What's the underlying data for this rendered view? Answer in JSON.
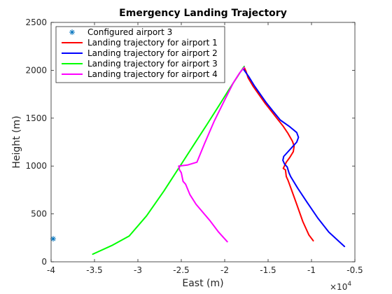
{
  "chart_data": {
    "type": "line",
    "title": "Emergency Landing Trajectory",
    "xlabel": "East (m)",
    "ylabel": "Height (m)",
    "x_exponent_label": "×10",
    "x_exponent_power": "4",
    "xlim": [
      -40000,
      -5000
    ],
    "ylim": [
      0,
      2500
    ],
    "x_ticks": [
      -40000,
      -35000,
      -30000,
      -25000,
      -20000,
      -15000,
      -10000,
      -5000
    ],
    "x_tick_labels": [
      "-4",
      "-3.5",
      "-3",
      "-2.5",
      "-2",
      "-1.5",
      "-1",
      "-0.5"
    ],
    "y_ticks": [
      0,
      500,
      1000,
      1500,
      2000,
      2500
    ],
    "y_tick_labels": [
      "0",
      "500",
      "1000",
      "1500",
      "2000",
      "2500"
    ],
    "grid": false,
    "legend_position": "top-left",
    "series": [
      {
        "name": "Configured airport 3",
        "kind": "marker",
        "marker": "asterisk",
        "color": "#0072BD",
        "points": [
          [
            -40000,
            240
          ]
        ]
      },
      {
        "name": "Landing trajectory for airport 1",
        "kind": "line",
        "color": "#FF0000",
        "points": [
          [
            -17750,
            2030
          ],
          [
            -17550,
            1990
          ],
          [
            -17300,
            1920
          ],
          [
            -16700,
            1830
          ],
          [
            -16000,
            1740
          ],
          [
            -15300,
            1650
          ],
          [
            -14600,
            1570
          ],
          [
            -14000,
            1500
          ],
          [
            -13300,
            1420
          ],
          [
            -12700,
            1340
          ],
          [
            -12200,
            1260
          ],
          [
            -12000,
            1210
          ],
          [
            -12100,
            1150
          ],
          [
            -12500,
            1090
          ],
          [
            -12900,
            1040
          ],
          [
            -13100,
            1005
          ],
          [
            -13250,
            975
          ],
          [
            -13000,
            960
          ],
          [
            -12900,
            890
          ],
          [
            -12700,
            850
          ],
          [
            -12300,
            750
          ],
          [
            -11700,
            600
          ],
          [
            -11000,
            420
          ],
          [
            -10300,
            280
          ],
          [
            -9800,
            220
          ]
        ]
      },
      {
        "name": "Landing trajectory for airport 2",
        "kind": "line",
        "color": "#0000FF",
        "points": [
          [
            -17900,
            2020
          ],
          [
            -17600,
            1980
          ],
          [
            -17200,
            1930
          ],
          [
            -16600,
            1840
          ],
          [
            -15900,
            1750
          ],
          [
            -15200,
            1660
          ],
          [
            -14400,
            1570
          ],
          [
            -13600,
            1480
          ],
          [
            -12500,
            1410
          ],
          [
            -11700,
            1350
          ],
          [
            -11500,
            1300
          ],
          [
            -11700,
            1250
          ],
          [
            -12200,
            1200
          ],
          [
            -12800,
            1140
          ],
          [
            -13200,
            1100
          ],
          [
            -13300,
            1060
          ],
          [
            -13100,
            1020
          ],
          [
            -12800,
            990
          ],
          [
            -12600,
            930
          ],
          [
            -12400,
            890
          ],
          [
            -11600,
            770
          ],
          [
            -10500,
            620
          ],
          [
            -9300,
            460
          ],
          [
            -8000,
            310
          ],
          [
            -6200,
            160
          ]
        ]
      },
      {
        "name": "Landing trajectory for airport 3",
        "kind": "line",
        "color": "#00FF00",
        "points": [
          [
            -17750,
            2040
          ],
          [
            -18200,
            1980
          ],
          [
            -18700,
            1910
          ],
          [
            -19500,
            1800
          ],
          [
            -20600,
            1640
          ],
          [
            -22000,
            1440
          ],
          [
            -23500,
            1230
          ],
          [
            -25000,
            1020
          ],
          [
            -27000,
            740
          ],
          [
            -29000,
            480
          ],
          [
            -31000,
            270
          ],
          [
            -33000,
            170
          ],
          [
            -35200,
            80
          ]
        ]
      },
      {
        "name": "Landing trajectory for airport 4",
        "kind": "line",
        "color": "#FF00FF",
        "points": [
          [
            -17750,
            2030
          ],
          [
            -18300,
            1970
          ],
          [
            -19000,
            1870
          ],
          [
            -20000,
            1690
          ],
          [
            -21200,
            1470
          ],
          [
            -22300,
            1240
          ],
          [
            -23200,
            1040
          ],
          [
            -24300,
            1010
          ],
          [
            -25300,
            1000
          ],
          [
            -25200,
            960
          ],
          [
            -25000,
            930
          ],
          [
            -24800,
            840
          ],
          [
            -24500,
            810
          ],
          [
            -24000,
            700
          ],
          [
            -23300,
            600
          ],
          [
            -21700,
            430
          ],
          [
            -20700,
            310
          ],
          [
            -19700,
            210
          ]
        ]
      }
    ]
  }
}
